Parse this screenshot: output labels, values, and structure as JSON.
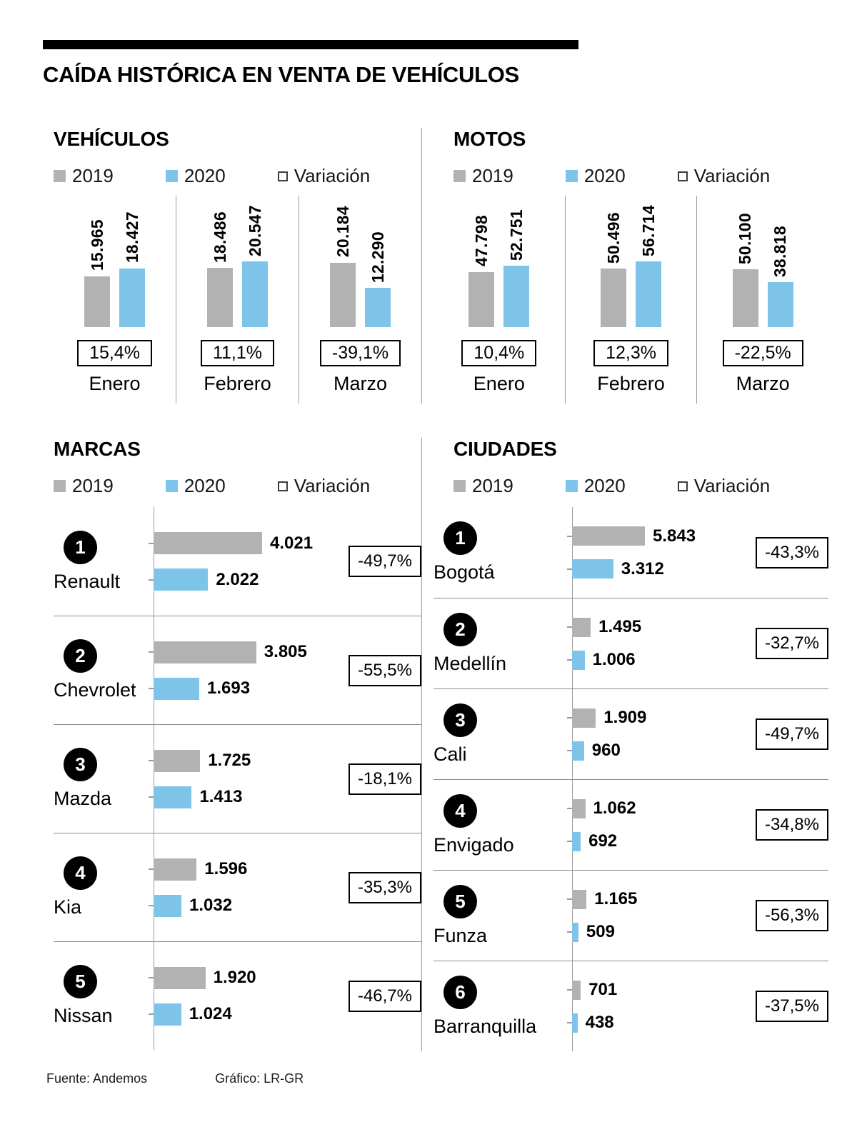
{
  "title": "CAÍDA HISTÓRICA EN VENTA DE VEHÍCULOS",
  "legend": {
    "y2019": "2019",
    "y2020": "2020",
    "variacion": "Variación"
  },
  "colors": {
    "gray": "#b2b2b2",
    "blue": "#7dc4e8"
  },
  "footer": {
    "source": "Fuente: Andemos",
    "credit": "Gráfico: LR-GR"
  },
  "chart_data": [
    {
      "id": "vehiculos",
      "type": "bar",
      "title": "VEHÍCULOS",
      "categories": [
        "Enero",
        "Febrero",
        "Marzo"
      ],
      "series": [
        {
          "name": "2019",
          "values": [
            15965,
            18486,
            20184
          ],
          "labels": [
            "15.965",
            "18.486",
            "20.184"
          ]
        },
        {
          "name": "2020",
          "values": [
            18427,
            20547,
            12290
          ],
          "labels": [
            "18.427",
            "20.547",
            "12.290"
          ]
        }
      ],
      "variation": [
        "15,4%",
        "11,1%",
        "-39,1%"
      ],
      "ymax": 20547,
      "legend_entries": [
        "2019",
        "2020",
        "Variación"
      ]
    },
    {
      "id": "motos",
      "type": "bar",
      "title": "MOTOS",
      "categories": [
        "Enero",
        "Febrero",
        "Marzo"
      ],
      "series": [
        {
          "name": "2019",
          "values": [
            47798,
            50496,
            50100
          ],
          "labels": [
            "47.798",
            "50.496",
            "50.100"
          ]
        },
        {
          "name": "2020",
          "values": [
            52751,
            56714,
            38818
          ],
          "labels": [
            "52.751",
            "56.714",
            "38.818"
          ]
        }
      ],
      "variation": [
        "10,4%",
        "12,3%",
        "-22,5%"
      ],
      "ymax": 56714,
      "legend_entries": [
        "2019",
        "2020",
        "Variación"
      ]
    },
    {
      "id": "marcas",
      "type": "bar",
      "orientation": "horizontal",
      "title": "MARCAS",
      "series_names": [
        "2019",
        "2020"
      ],
      "rows": [
        {
          "rank": "1",
          "name": "Renault",
          "values": [
            4021,
            2022
          ],
          "labels": [
            "4.021",
            "2.022"
          ],
          "variation": "-49,7%"
        },
        {
          "rank": "2",
          "name": "Chevrolet",
          "values": [
            3805,
            1693
          ],
          "labels": [
            "3.805",
            "1.693"
          ],
          "variation": "-55,5%"
        },
        {
          "rank": "3",
          "name": "Mazda",
          "values": [
            1725,
            1413
          ],
          "labels": [
            "1.725",
            "1.413"
          ],
          "variation": "-18,1%"
        },
        {
          "rank": "4",
          "name": "Kia",
          "values": [
            1596,
            1032
          ],
          "labels": [
            "1.596",
            "1.032"
          ],
          "variation": "-35,3%"
        },
        {
          "rank": "5",
          "name": "Nissan",
          "values": [
            1920,
            1024
          ],
          "labels": [
            "1.920",
            "1.024"
          ],
          "variation": "-46,7%"
        }
      ],
      "xmax": 4021,
      "legend_entries": [
        "2019",
        "2020",
        "Variación"
      ]
    },
    {
      "id": "ciudades",
      "type": "bar",
      "orientation": "horizontal",
      "title": "CIUDADES",
      "series_names": [
        "2019",
        "2020"
      ],
      "rows": [
        {
          "rank": "1",
          "name": "Bogotá",
          "values": [
            5843,
            3312
          ],
          "labels": [
            "5.843",
            "3.312"
          ],
          "variation": "-43,3%"
        },
        {
          "rank": "2",
          "name": "Medellín",
          "values": [
            1495,
            1006
          ],
          "labels": [
            "1.495",
            "1.006"
          ],
          "variation": "-32,7%"
        },
        {
          "rank": "3",
          "name": "Cali",
          "values": [
            1909,
            960
          ],
          "labels": [
            "1.909",
            "960"
          ],
          "variation": "-49,7%"
        },
        {
          "rank": "4",
          "name": "Envigado",
          "values": [
            1062,
            692
          ],
          "labels": [
            "1.062",
            "692"
          ],
          "variation": "-34,8%"
        },
        {
          "rank": "5",
          "name": "Funza",
          "values": [
            1165,
            509
          ],
          "labels": [
            "1.165",
            "509"
          ],
          "variation": "-56,3%"
        },
        {
          "rank": "6",
          "name": "Barranquilla",
          "values": [
            701,
            438
          ],
          "labels": [
            "701",
            "438"
          ],
          "variation": "-37,5%"
        }
      ],
      "xmax": 5843,
      "legend_entries": [
        "2019",
        "2020",
        "Variación"
      ]
    }
  ]
}
